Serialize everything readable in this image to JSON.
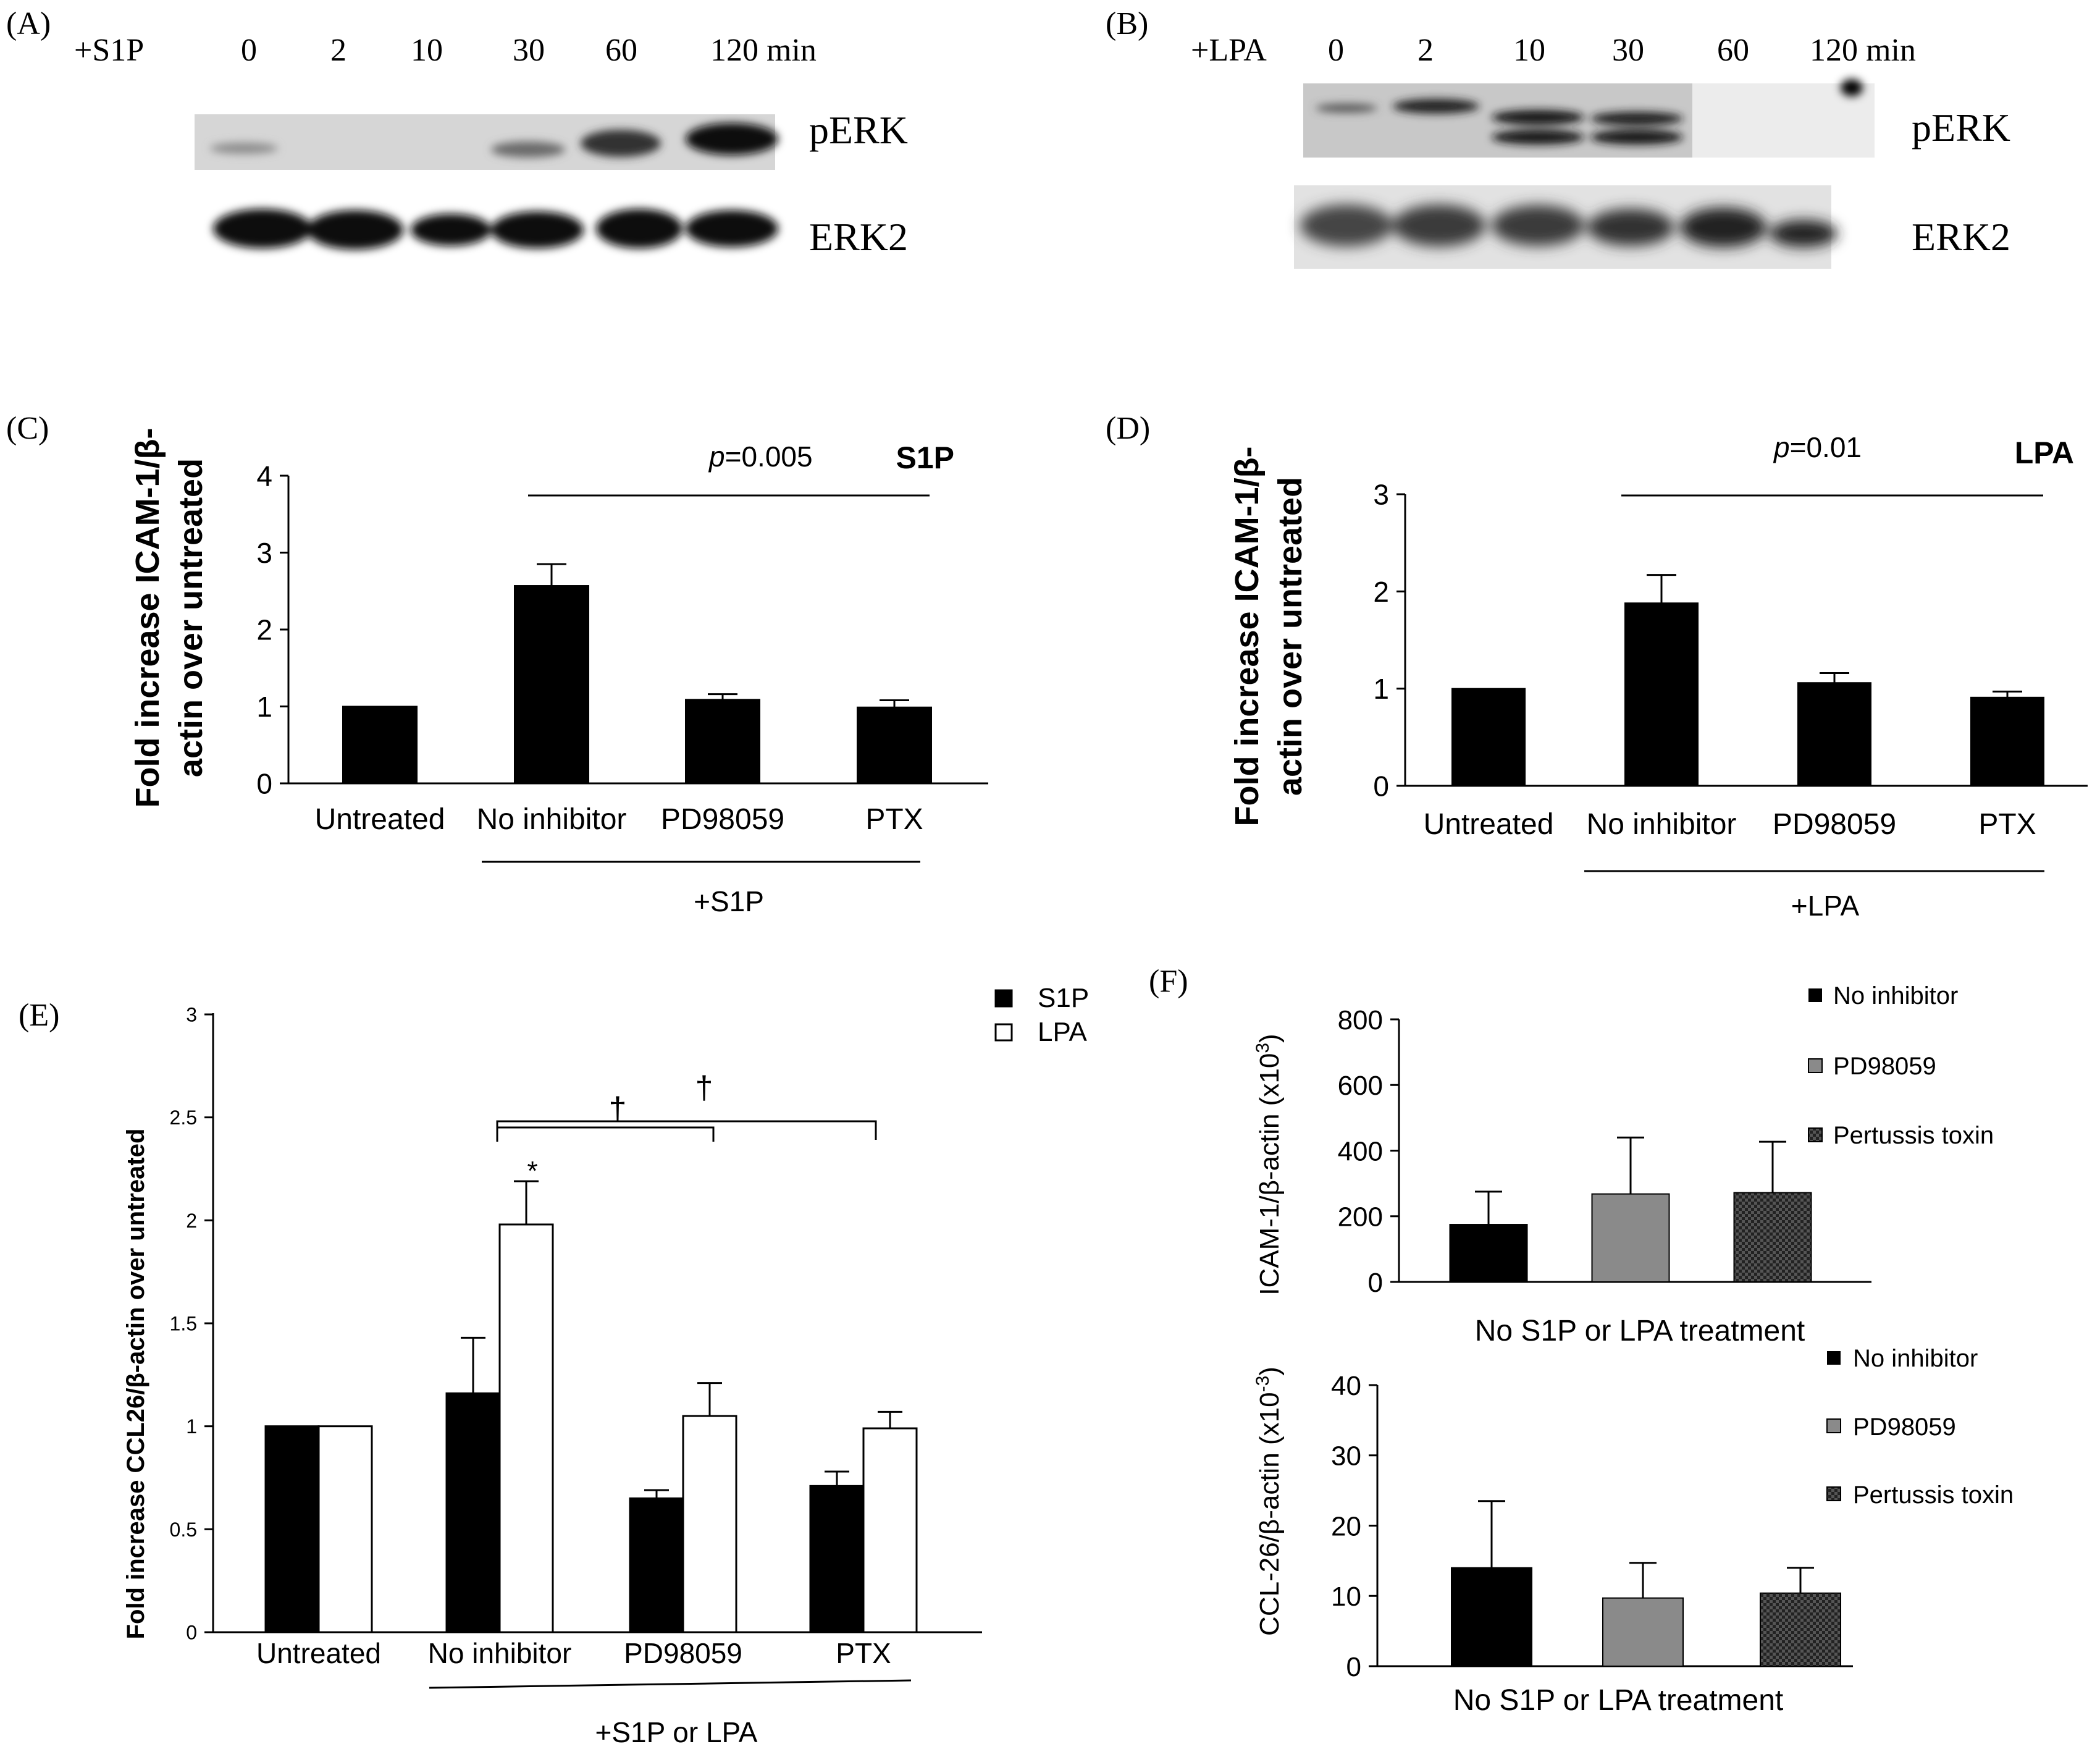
{
  "blot_a": {
    "label": "(A)",
    "treatment": "+S1P",
    "times": [
      "0",
      "2",
      "10",
      "30",
      "60",
      "120 min"
    ],
    "bands": [
      "pERK",
      "ERK2"
    ]
  },
  "blot_b": {
    "label": "(B)",
    "treatment": "+LPA",
    "times": [
      "0",
      "2",
      "10",
      "30",
      "60",
      "120 min"
    ],
    "bands": [
      "pERK",
      "ERK2"
    ]
  },
  "chart_data": [
    {
      "id": "C",
      "panel_label": "(C)",
      "type": "bar",
      "title": "S1P",
      "ylabel_lines": [
        "Fold increase ICAM-1/β-",
        "actin over untreated"
      ],
      "categories": [
        "Untreated",
        "No inhibitor",
        "PD98059",
        "PTX"
      ],
      "values": [
        1.0,
        2.57,
        1.09,
        0.99
      ],
      "errors": [
        0,
        0.28,
        0.07,
        0.09
      ],
      "ylim": [
        0,
        4
      ],
      "yticks": [
        "0",
        "1",
        "2",
        "3",
        "4"
      ],
      "p_label": "p",
      "p_value": "=0.005",
      "group_label": "+S1P",
      "color": "#000000"
    },
    {
      "id": "D",
      "panel_label": "(D)",
      "type": "bar",
      "title": "LPA",
      "ylabel_lines": [
        "Fold increase ICAM-1/β-",
        "actin over untreated"
      ],
      "categories": [
        "Untreated",
        "No inhibitor",
        "PD98059",
        "PTX"
      ],
      "values": [
        1.0,
        1.88,
        1.06,
        0.91
      ],
      "errors": [
        0,
        0.29,
        0.1,
        0.06
      ],
      "ylim": [
        0,
        3
      ],
      "yticks": [
        "0",
        "1",
        "2",
        "3"
      ],
      "p_label": "p",
      "p_value": "=0.01",
      "group_label": "+LPA",
      "color": "#000000"
    },
    {
      "id": "E",
      "panel_label": "(E)",
      "type": "bar",
      "ylabel": "Fold increase CCL26/β-actin over untreated",
      "categories": [
        "Untreated",
        "No inhibitor",
        "PD98059",
        "PTX"
      ],
      "series": [
        {
          "name": "S1P",
          "values": [
            1.0,
            1.16,
            0.65,
            0.71
          ],
          "errors": [
            0,
            0.27,
            0.04,
            0.07
          ],
          "color": "#000000"
        },
        {
          "name": "LPA",
          "values": [
            1.0,
            1.98,
            1.05,
            0.99
          ],
          "errors": [
            0,
            0.21,
            0.16,
            0.08
          ],
          "color": "#ffffff"
        }
      ],
      "ylim": [
        0,
        3
      ],
      "yticks": [
        "0",
        "0.5",
        "1",
        "1.5",
        "2",
        "2.5",
        "3"
      ],
      "marks": {
        "star": "*",
        "dagger_1": "†",
        "dagger_2": "†"
      },
      "group_label": "+S1P or LPA",
      "legend_position": "top-right"
    },
    {
      "id": "F1",
      "panel_label": "(F)",
      "type": "bar",
      "ylabel": "ICAM-1/β-actin (x10",
      "ylabel_sup": "3",
      "ylabel_end": ")",
      "xlabel": "No S1P or LPA treatment",
      "categories": [
        "No inhibitor",
        "PD98059",
        "Pertussis toxin"
      ],
      "values": [
        175,
        268,
        272
      ],
      "errors": [
        100,
        172,
        155
      ],
      "colors": [
        "#000000",
        "#8a8a8a",
        "checker"
      ],
      "ylim": [
        0,
        800
      ],
      "yticks": [
        "0",
        "200",
        "400",
        "600",
        "800"
      ],
      "legend_position": "top-right"
    },
    {
      "id": "F2",
      "type": "bar",
      "ylabel": "CCL-26/β-actin (x10",
      "ylabel_sup": "-3",
      "ylabel_end": ")",
      "xlabel": "No S1P or LPA treatment",
      "categories": [
        "No inhibitor",
        "PD98059",
        "Pertussis toxin"
      ],
      "values": [
        14,
        9.7,
        10.4
      ],
      "errors": [
        9.5,
        5,
        3.6
      ],
      "colors": [
        "#000000",
        "#8a8a8a",
        "checker"
      ],
      "ylim": [
        0,
        40
      ],
      "yticks": [
        "0",
        "10",
        "20",
        "30",
        "40"
      ],
      "legend_position": "top-right"
    }
  ]
}
